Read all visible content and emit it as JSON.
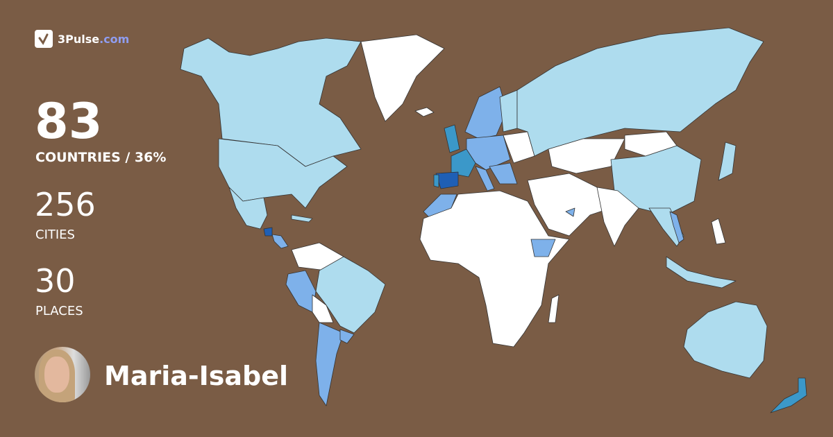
{
  "brand": {
    "name": "3Pulse",
    ".com": ".com",
    "name_main": "3Pulse",
    "name_domain": ".com",
    "logo_icon": "check-pulse-icon"
  },
  "stats": {
    "countries": {
      "value": "83",
      "label": "COUNTRIES / 36%"
    },
    "cities": {
      "value": "256",
      "label": "CITIES"
    },
    "places": {
      "value": "30",
      "label": "PLACES"
    }
  },
  "user": {
    "name": "Maria-Isabel",
    "avatar": "user-avatar-photo"
  },
  "colors": {
    "background": "#7a5c45",
    "unvisited": "#ffffff",
    "visited_light": "#aedcee",
    "visited_medium": "#7eb1ea",
    "visited_strong": "#3b98c9",
    "visited_top": "#1f5fb5",
    "brand_accent": "#8f9df0"
  }
}
